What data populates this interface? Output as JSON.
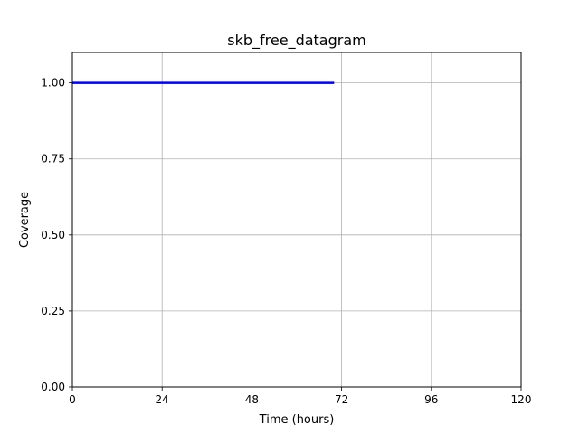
{
  "chart_data": {
    "type": "line",
    "title": "skb_free_datagram",
    "xlabel": "Time (hours)",
    "ylabel": "Coverage",
    "xlim": [
      0,
      120
    ],
    "ylim": [
      0,
      1.1
    ],
    "xticks": [
      0,
      24,
      48,
      72,
      96,
      120
    ],
    "xtick_labels": [
      "0",
      "24",
      "48",
      "72",
      "96",
      "120"
    ],
    "yticks": [
      0,
      0.25,
      0.5,
      0.75,
      1.0
    ],
    "ytick_labels": [
      "0.00",
      "0.25",
      "0.50",
      "0.75",
      "1.00"
    ],
    "grid": true,
    "series": [
      {
        "color": "#0000ff",
        "x": [
          0,
          70
        ],
        "y": [
          1.0,
          1.0
        ]
      }
    ]
  }
}
